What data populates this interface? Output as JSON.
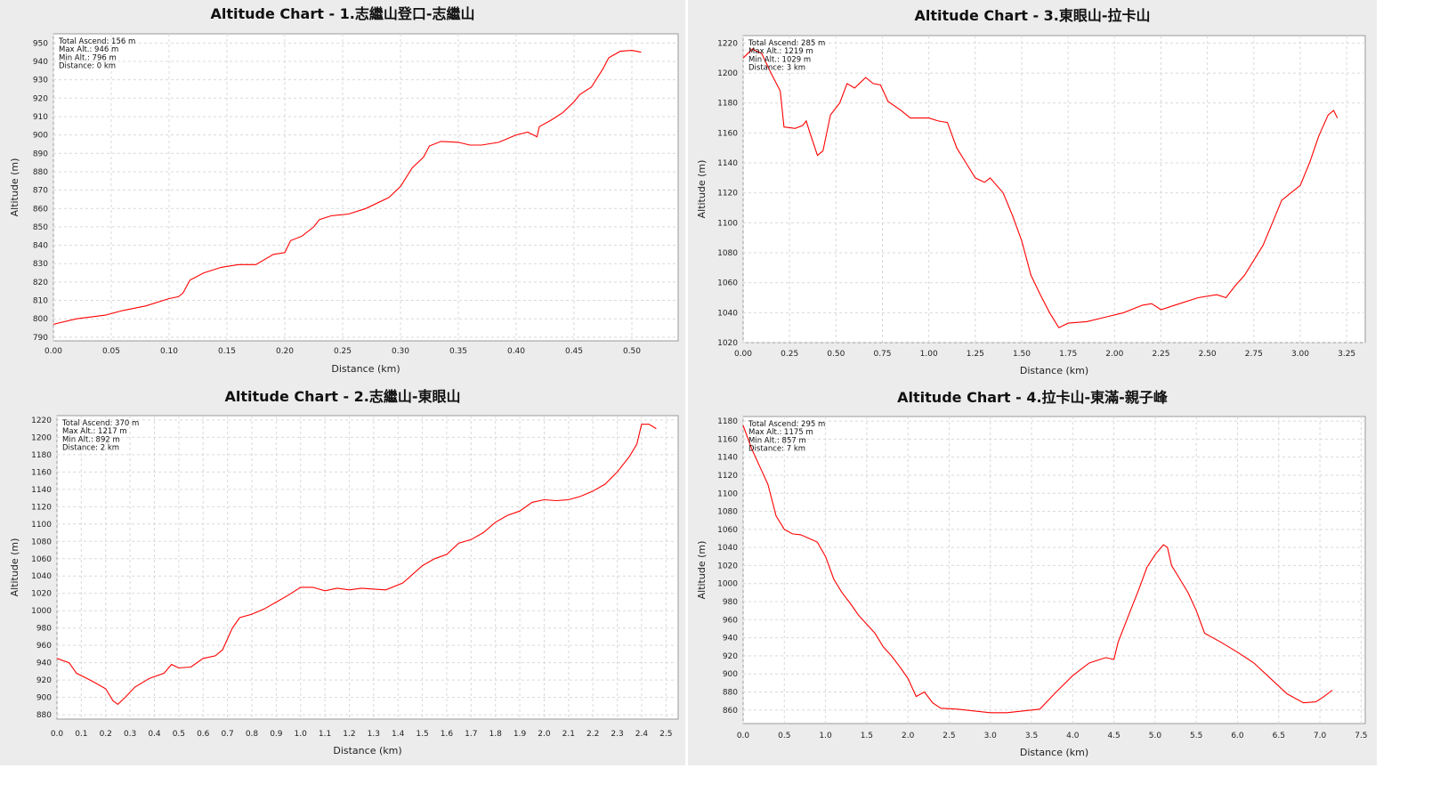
{
  "chart_data": [
    {
      "type": "line",
      "title": "Altitude Chart - 1.志繼山登口-志繼山",
      "xlabel": "Distance (km)",
      "ylabel": "Altitude (m)",
      "xlim": [
        0,
        0.54
      ],
      "ylim": [
        788,
        955
      ],
      "x_ticks": [
        "0.00",
        "0.05",
        "0.10",
        "0.15",
        "0.20",
        "0.25",
        "0.30",
        "0.35",
        "0.40",
        "0.45",
        "0.50"
      ],
      "y_ticks": [
        "790",
        "800",
        "810",
        "820",
        "830",
        "840",
        "850",
        "860",
        "870",
        "880",
        "890",
        "900",
        "910",
        "920",
        "930",
        "940",
        "950"
      ],
      "info": [
        "Total Ascend: 156 m",
        "Max Alt.: 946 m",
        "Min Alt.: 796 m",
        "Distance: 0 km"
      ],
      "grid": true,
      "series": [
        {
          "color": "#ff0000",
          "points": [
            [
              0,
              797
            ],
            [
              0.02,
              800
            ],
            [
              0.045,
              802
            ],
            [
              0.06,
              804.5
            ],
            [
              0.08,
              807
            ],
            [
              0.1,
              811
            ],
            [
              0.108,
              812
            ],
            [
              0.112,
              814
            ],
            [
              0.118,
              821
            ],
            [
              0.13,
              825
            ],
            [
              0.145,
              828
            ],
            [
              0.16,
              829.5
            ],
            [
              0.175,
              829.5
            ],
            [
              0.19,
              835
            ],
            [
              0.2,
              836
            ],
            [
              0.205,
              842.5
            ],
            [
              0.215,
              845
            ],
            [
              0.225,
              850
            ],
            [
              0.23,
              854
            ],
            [
              0.24,
              856
            ],
            [
              0.255,
              857
            ],
            [
              0.27,
              860
            ],
            [
              0.29,
              866
            ],
            [
              0.3,
              872
            ],
            [
              0.31,
              882
            ],
            [
              0.32,
              888
            ],
            [
              0.325,
              894
            ],
            [
              0.335,
              896.5
            ],
            [
              0.35,
              896
            ],
            [
              0.36,
              894.5
            ],
            [
              0.37,
              894.5
            ],
            [
              0.385,
              896
            ],
            [
              0.4,
              900
            ],
            [
              0.41,
              901.5
            ],
            [
              0.418,
              899
            ],
            [
              0.42,
              904.5
            ],
            [
              0.43,
              908
            ],
            [
              0.44,
              912
            ],
            [
              0.45,
              918
            ],
            [
              0.455,
              922
            ],
            [
              0.465,
              926
            ],
            [
              0.47,
              931
            ],
            [
              0.475,
              936
            ],
            [
              0.48,
              942
            ],
            [
              0.49,
              945.5
            ],
            [
              0.5,
              946
            ],
            [
              0.508,
              945
            ]
          ]
        }
      ]
    },
    {
      "type": "line",
      "title": "Altitude Chart - 3.東眼山-拉卡山",
      "xlabel": "Distance (km)",
      "ylabel": "Altitude (m)",
      "xlim": [
        0,
        3.35
      ],
      "ylim": [
        1020,
        1225
      ],
      "x_ticks": [
        "0.00",
        "0.25",
        "0.50",
        "0.75",
        "1.00",
        "1.25",
        "1.50",
        "1.75",
        "2.00",
        "2.25",
        "2.50",
        "2.75",
        "3.00",
        "3.25"
      ],
      "y_ticks": [
        "1020",
        "1040",
        "1060",
        "1080",
        "1100",
        "1120",
        "1140",
        "1160",
        "1180",
        "1200",
        "1220"
      ],
      "info": [
        "Total Ascend: 285 m",
        "Max Alt.: 1219 m",
        "Min Alt.: 1029 m",
        "Distance: 3 km"
      ],
      "grid": true,
      "series": [
        {
          "color": "#ff0000",
          "points": [
            [
              0,
              1210
            ],
            [
              0.05,
              1216
            ],
            [
              0.1,
              1213
            ],
            [
              0.15,
              1200
            ],
            [
              0.2,
              1188
            ],
            [
              0.22,
              1164
            ],
            [
              0.28,
              1163
            ],
            [
              0.32,
              1165
            ],
            [
              0.34,
              1168
            ],
            [
              0.36,
              1160
            ],
            [
              0.4,
              1145
            ],
            [
              0.43,
              1148
            ],
            [
              0.47,
              1172
            ],
            [
              0.52,
              1180
            ],
            [
              0.56,
              1193
            ],
            [
              0.6,
              1190
            ],
            [
              0.66,
              1197
            ],
            [
              0.7,
              1193
            ],
            [
              0.74,
              1192
            ],
            [
              0.78,
              1181
            ],
            [
              0.85,
              1175
            ],
            [
              0.9,
              1170
            ],
            [
              1.0,
              1170
            ],
            [
              1.05,
              1168
            ],
            [
              1.1,
              1167
            ],
            [
              1.15,
              1150
            ],
            [
              1.2,
              1140
            ],
            [
              1.25,
              1130
            ],
            [
              1.3,
              1127
            ],
            [
              1.33,
              1130
            ],
            [
              1.4,
              1120
            ],
            [
              1.45,
              1105
            ],
            [
              1.5,
              1088
            ],
            [
              1.55,
              1065
            ],
            [
              1.6,
              1052
            ],
            [
              1.65,
              1040
            ],
            [
              1.7,
              1030
            ],
            [
              1.75,
              1033
            ],
            [
              1.85,
              1034
            ],
            [
              1.95,
              1037
            ],
            [
              2.05,
              1040
            ],
            [
              2.15,
              1045
            ],
            [
              2.2,
              1046
            ],
            [
              2.25,
              1042
            ],
            [
              2.35,
              1046
            ],
            [
              2.45,
              1050
            ],
            [
              2.55,
              1052
            ],
            [
              2.6,
              1050
            ],
            [
              2.65,
              1058
            ],
            [
              2.7,
              1065
            ],
            [
              2.75,
              1075
            ],
            [
              2.8,
              1085
            ],
            [
              2.85,
              1100
            ],
            [
              2.9,
              1115
            ],
            [
              2.95,
              1120
            ],
            [
              3.0,
              1125
            ],
            [
              3.05,
              1140
            ],
            [
              3.1,
              1158
            ],
            [
              3.15,
              1172
            ],
            [
              3.18,
              1175
            ],
            [
              3.2,
              1170
            ]
          ]
        }
      ]
    },
    {
      "type": "line",
      "title": "Altitude Chart - 2.志繼山-東眼山",
      "xlabel": "Distance (km)",
      "ylabel": "Altitude (m)",
      "xlim": [
        0,
        2.55
      ],
      "ylim": [
        875,
        1225
      ],
      "x_ticks": [
        "0.0",
        "0.1",
        "0.2",
        "0.3",
        "0.4",
        "0.5",
        "0.6",
        "0.7",
        "0.8",
        "0.9",
        "1.0",
        "1.1",
        "1.2",
        "1.3",
        "1.4",
        "1.5",
        "1.6",
        "1.7",
        "1.8",
        "1.9",
        "2.0",
        "2.1",
        "2.2",
        "2.3",
        "2.4",
        "2.5"
      ],
      "y_ticks": [
        "880",
        "900",
        "920",
        "940",
        "960",
        "980",
        "1000",
        "1020",
        "1040",
        "1060",
        "1080",
        "1100",
        "1120",
        "1140",
        "1160",
        "1180",
        "1200",
        "1220"
      ],
      "info": [
        "Total Ascend: 370 m",
        "Max Alt.: 1217 m",
        "Min Alt.: 892 m",
        "Distance: 2 km"
      ],
      "grid": true,
      "series": [
        {
          "color": "#ff0000",
          "points": [
            [
              0,
              945
            ],
            [
              0.05,
              940
            ],
            [
              0.08,
              928
            ],
            [
              0.15,
              918
            ],
            [
              0.2,
              910
            ],
            [
              0.23,
              896
            ],
            [
              0.25,
              892
            ],
            [
              0.28,
              900
            ],
            [
              0.32,
              912
            ],
            [
              0.38,
              922
            ],
            [
              0.44,
              928
            ],
            [
              0.47,
              938
            ],
            [
              0.5,
              934
            ],
            [
              0.55,
              935
            ],
            [
              0.6,
              945
            ],
            [
              0.65,
              948
            ],
            [
              0.68,
              955
            ],
            [
              0.72,
              980
            ],
            [
              0.75,
              992
            ],
            [
              0.8,
              996
            ],
            [
              0.85,
              1002
            ],
            [
              0.9,
              1010
            ],
            [
              0.95,
              1018
            ],
            [
              1.0,
              1027
            ],
            [
              1.05,
              1027
            ],
            [
              1.1,
              1023
            ],
            [
              1.15,
              1026
            ],
            [
              1.2,
              1024
            ],
            [
              1.25,
              1026
            ],
            [
              1.3,
              1025
            ],
            [
              1.35,
              1024
            ],
            [
              1.42,
              1032
            ],
            [
              1.5,
              1052
            ],
            [
              1.55,
              1060
            ],
            [
              1.6,
              1065
            ],
            [
              1.65,
              1078
            ],
            [
              1.7,
              1082
            ],
            [
              1.75,
              1090
            ],
            [
              1.8,
              1102
            ],
            [
              1.85,
              1110
            ],
            [
              1.9,
              1115
            ],
            [
              1.95,
              1125
            ],
            [
              2.0,
              1128
            ],
            [
              2.05,
              1127
            ],
            [
              2.1,
              1128
            ],
            [
              2.15,
              1132
            ],
            [
              2.2,
              1138
            ],
            [
              2.25,
              1146
            ],
            [
              2.3,
              1160
            ],
            [
              2.35,
              1178
            ],
            [
              2.38,
              1192
            ],
            [
              2.4,
              1215
            ],
            [
              2.43,
              1215
            ],
            [
              2.46,
              1210
            ]
          ]
        }
      ]
    },
    {
      "type": "line",
      "title": "Altitude Chart - 4.拉卡山-東滿-親子峰",
      "xlabel": "Distance (km)",
      "ylabel": "Altitude (m)",
      "xlim": [
        0,
        7.55
      ],
      "ylim": [
        845,
        1185
      ],
      "x_ticks": [
        "0.0",
        "0.5",
        "1.0",
        "1.5",
        "2.0",
        "2.5",
        "3.0",
        "3.5",
        "4.0",
        "4.5",
        "5.0",
        "5.5",
        "6.0",
        "6.5",
        "7.0",
        "7.5"
      ],
      "y_ticks": [
        "860",
        "880",
        "900",
        "920",
        "940",
        "960",
        "980",
        "1000",
        "1020",
        "1040",
        "1060",
        "1080",
        "1100",
        "1120",
        "1140",
        "1160",
        "1180"
      ],
      "info": [
        "Total Ascend: 295 m",
        "Max Alt.: 1175 m",
        "Min Alt.: 857 m",
        "Distance: 7 km"
      ],
      "grid": true,
      "series": [
        {
          "color": "#ff0000",
          "points": [
            [
              0,
              1175
            ],
            [
              0.1,
              1150
            ],
            [
              0.2,
              1130
            ],
            [
              0.3,
              1110
            ],
            [
              0.4,
              1075
            ],
            [
              0.5,
              1060
            ],
            [
              0.6,
              1055
            ],
            [
              0.7,
              1054
            ],
            [
              0.8,
              1050
            ],
            [
              0.9,
              1046
            ],
            [
              1.0,
              1030
            ],
            [
              1.1,
              1005
            ],
            [
              1.2,
              990
            ],
            [
              1.3,
              978
            ],
            [
              1.4,
              965
            ],
            [
              1.5,
              955
            ],
            [
              1.6,
              945
            ],
            [
              1.7,
              930
            ],
            [
              1.8,
              920
            ],
            [
              1.9,
              908
            ],
            [
              2.0,
              895
            ],
            [
              2.1,
              875
            ],
            [
              2.2,
              880
            ],
            [
              2.3,
              868
            ],
            [
              2.4,
              862
            ],
            [
              2.6,
              861
            ],
            [
              2.8,
              859
            ],
            [
              3.0,
              857
            ],
            [
              3.2,
              857
            ],
            [
              3.4,
              859
            ],
            [
              3.6,
              861
            ],
            [
              3.8,
              880
            ],
            [
              4.0,
              898
            ],
            [
              4.2,
              912
            ],
            [
              4.4,
              918
            ],
            [
              4.5,
              916
            ],
            [
              4.55,
              935
            ],
            [
              4.7,
              970
            ],
            [
              4.8,
              993
            ],
            [
              4.9,
              1018
            ],
            [
              5.0,
              1032
            ],
            [
              5.1,
              1043
            ],
            [
              5.15,
              1040
            ],
            [
              5.2,
              1020
            ],
            [
              5.3,
              1005
            ],
            [
              5.4,
              990
            ],
            [
              5.5,
              970
            ],
            [
              5.6,
              945
            ],
            [
              5.8,
              935
            ],
            [
              6.0,
              924
            ],
            [
              6.2,
              912
            ],
            [
              6.4,
              895
            ],
            [
              6.6,
              878
            ],
            [
              6.8,
              868
            ],
            [
              6.95,
              869
            ],
            [
              7.05,
              875
            ],
            [
              7.15,
              882
            ]
          ]
        }
      ]
    }
  ]
}
